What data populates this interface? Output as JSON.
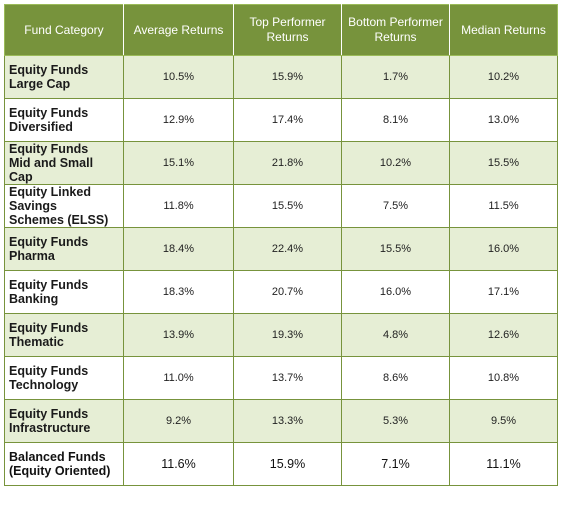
{
  "table": {
    "headers": [
      "Fund Category",
      "Average Returns",
      "Top Performer Returns",
      "Bottom Performer Returns",
      "Median Returns"
    ],
    "rows": [
      {
        "category": [
          "Equity Funds",
          "Large Cap"
        ],
        "avg": "10.5%",
        "top": "15.9%",
        "bottom": "1.7%",
        "median": "10.2%"
      },
      {
        "category": [
          "Equity Funds",
          "Diversified"
        ],
        "avg": "12.9%",
        "top": "17.4%",
        "bottom": "8.1%",
        "median": "13.0%"
      },
      {
        "category": [
          "Equity Funds",
          "Mid and Small",
          "Cap"
        ],
        "avg": "15.1%",
        "top": "21.8%",
        "bottom": "10.2%",
        "median": "15.5%"
      },
      {
        "category": [
          "Equity Linked",
          "Savings",
          "Schemes (ELSS)"
        ],
        "avg": "11.8%",
        "top": "15.5%",
        "bottom": "7.5%",
        "median": "11.5%"
      },
      {
        "category": [
          "Equity Funds",
          "Pharma"
        ],
        "avg": "18.4%",
        "top": "22.4%",
        "bottom": "15.5%",
        "median": "16.0%"
      },
      {
        "category": [
          "Equity Funds",
          "Banking"
        ],
        "avg": "18.3%",
        "top": "20.7%",
        "bottom": "16.0%",
        "median": "17.1%"
      },
      {
        "category": [
          "Equity Funds",
          "Thematic"
        ],
        "avg": "13.9%",
        "top": "19.3%",
        "bottom": "4.8%",
        "median": "12.6%"
      },
      {
        "category": [
          "Equity Funds",
          "Technology"
        ],
        "avg": "11.0%",
        "top": "13.7%",
        "bottom": "8.6%",
        "median": "10.8%"
      },
      {
        "category": [
          "Equity Funds",
          "Infrastructure"
        ],
        "avg": "9.2%",
        "top": "13.3%",
        "bottom": "5.3%",
        "median": "9.5%"
      },
      {
        "category": [
          "Balanced Funds",
          "(Equity Oriented)"
        ],
        "avg": "11.6%",
        "top": "15.9%",
        "bottom": "7.1%",
        "median": "11.1%"
      }
    ]
  },
  "colors": {
    "header_bg": "#77933c",
    "header_text": "#ffffff",
    "shaded_row": "#e6eed5",
    "border": "#77933c"
  }
}
